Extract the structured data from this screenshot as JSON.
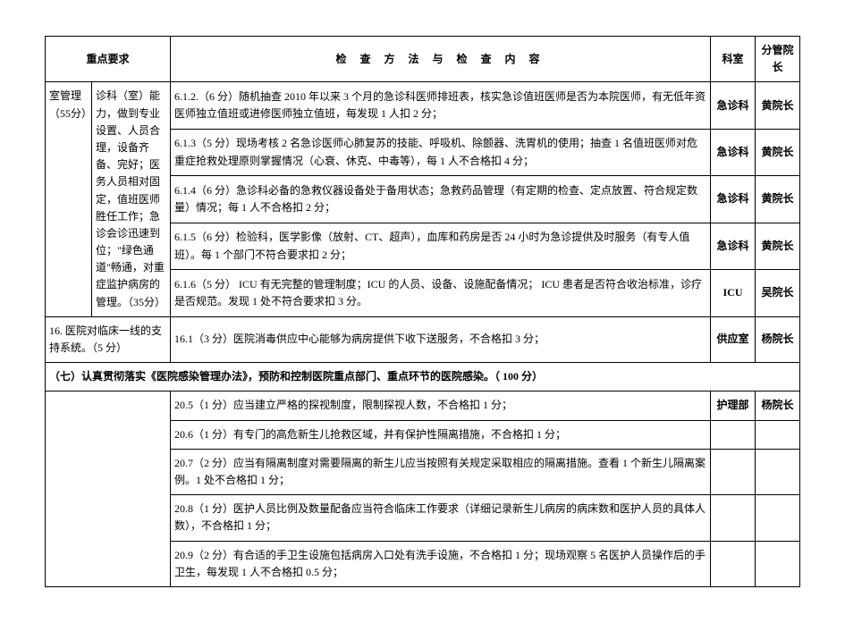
{
  "headers": {
    "requirement": "重点要求",
    "method": "检 查 方 法 与 检 查 内 容",
    "department": "科室",
    "leader": "分管院长"
  },
  "block1": {
    "col1": "室管理（55分）",
    "col2": "诊科（室）能力，做到专业设置、人员合理，设备齐备、完好；医务人员相对固定，值班医师胜任工作；急诊会诊迅速到位；\"绿色通道\"畅通，对重症监护病房的管理。（35分）",
    "rows": [
      {
        "method": "6.1.2.（6 分）随机抽查 2010 年以来 3 个月的急诊科医师排班表，核实急诊值班医师是否为本院医师，有无低年资医师独立值班或进修医师独立值班，每发现 1 人扣 2 分；",
        "dept": "急诊科",
        "leader": "黄院长"
      },
      {
        "method": "6.1.3（5 分）现场考核 2 名急诊医师心肺复苏的技能、呼吸机、除颤器、洗胃机的使用；抽查 1 名值班医师对危重症抢救处理原则掌握情况（心衰、休克、中毒等），每 1 人不合格扣 4 分；",
        "dept": "急诊科",
        "leader": "黄院长"
      },
      {
        "method": "6.1.4（6 分）急诊科必备的急救仪器设备处于备用状态；急救药品管理（有定期的检查、定点放置、符合规定数量）情况；每 1 人不合格扣 2 分；",
        "dept": "急诊科",
        "leader": "黄院长"
      },
      {
        "method": "6.1.5（6 分）检验科，医学影像（放射、CT、超声），血库和药房是否 24 小时为急诊提供及时服务（有专人值班）。每 1 个部门不符合要求扣 2 分；",
        "dept": "急诊科",
        "leader": "黄院长"
      },
      {
        "method": "6.1.6（5 分） ICU 有无完整的管理制度；ICU 的人员、设备、设施配备情况； ICU 患者是否符合收治标准，诊疗是否规范。发现 1 处不符合要求扣 3 分。",
        "dept": "ICU",
        "leader": "吴院长"
      }
    ]
  },
  "block2": {
    "col": "16. 医院对临床一线的支持系统。（5 分）",
    "method": "16.1（3 分）医院消毒供应中心能够为病房提供下收下送服务，不合格扣 3 分；",
    "dept": "供应室",
    "leader": "杨院长"
  },
  "section": {
    "text": "（七）认真贯彻落实《医院感染管理办法》，预防和控制医院重点部门、重点环节的医院感染。（ 100 分）"
  },
  "block3": {
    "rows": [
      {
        "method": "20.5（1 分）应当建立严格的探视制度，限制探视人数，不合格扣 1 分；",
        "dept": "护理部",
        "leader": "杨院长"
      },
      {
        "method": "20.6（1 分）有专门的高危新生儿抢救区域，并有保护性隔离措施，不合格扣 1 分；",
        "dept": "",
        "leader": ""
      },
      {
        "method": "20.7（2 分）应当有隔离制度对需要隔离的新生儿应当按照有关规定采取相应的隔离措施。查看 1 个新生儿隔离案例。1 处不合格扣 1 分；",
        "dept": "",
        "leader": ""
      },
      {
        "method": "20.8（1 分）医护人员比例及数量配备应当符合临床工作要求（详细记录新生儿病房的病床数和医护人员的具体人数），不合格扣 1 分；",
        "dept": "",
        "leader": ""
      },
      {
        "method": "20.9（2 分）有合适的手卫生设施包括病房入口处有洗手设施，不合格扣 1 分；现场观察 5 名医护人员操作后的手卫生，每发现 1 人不合格扣 0.5 分；",
        "dept": "",
        "leader": ""
      }
    ]
  }
}
